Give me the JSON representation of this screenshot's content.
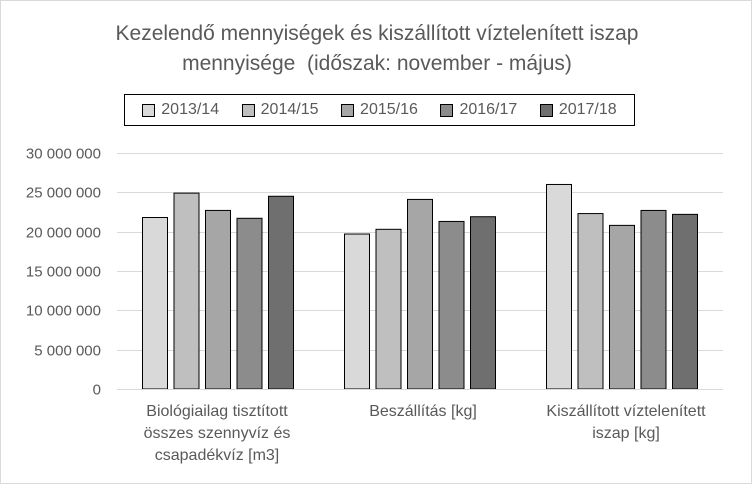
{
  "chart_data": {
    "type": "bar",
    "title": [
      "Kezelendő mennyiségek és kiszállított víztelenített iszap",
      "mennyisége  (időszak: november - május)"
    ],
    "categories": [
      [
        "Biológiailag tisztított",
        "összes szennyvíz és",
        "csapadékvíz [m3]"
      ],
      [
        "Beszállítás [kg]"
      ],
      [
        "Kiszállított víztelenített",
        "iszap [kg]"
      ]
    ],
    "series": [
      {
        "name": "2013/14",
        "color": "#d9d9d9",
        "values": [
          21800000,
          19700000,
          26000000
        ]
      },
      {
        "name": "2014/15",
        "color": "#bfbfbf",
        "values": [
          24900000,
          20300000,
          22300000
        ]
      },
      {
        "name": "2015/16",
        "color": "#a6a6a6",
        "values": [
          22700000,
          24100000,
          20800000
        ]
      },
      {
        "name": "2016/17",
        "color": "#8c8c8c",
        "values": [
          21700000,
          21300000,
          22700000
        ]
      },
      {
        "name": "2017/18",
        "color": "#6f6f6f",
        "values": [
          24500000,
          21900000,
          22200000
        ]
      }
    ],
    "ylim": [
      0,
      30000000
    ],
    "yticks": [
      "0",
      "5 000 000",
      "10 000 000",
      "15 000 000",
      "20 000 000",
      "25 000 000",
      "30 000 000"
    ],
    "ytick_values": [
      0,
      5000000,
      10000000,
      15000000,
      20000000,
      25000000,
      30000000
    ],
    "grid": true,
    "legend_position": "top"
  }
}
